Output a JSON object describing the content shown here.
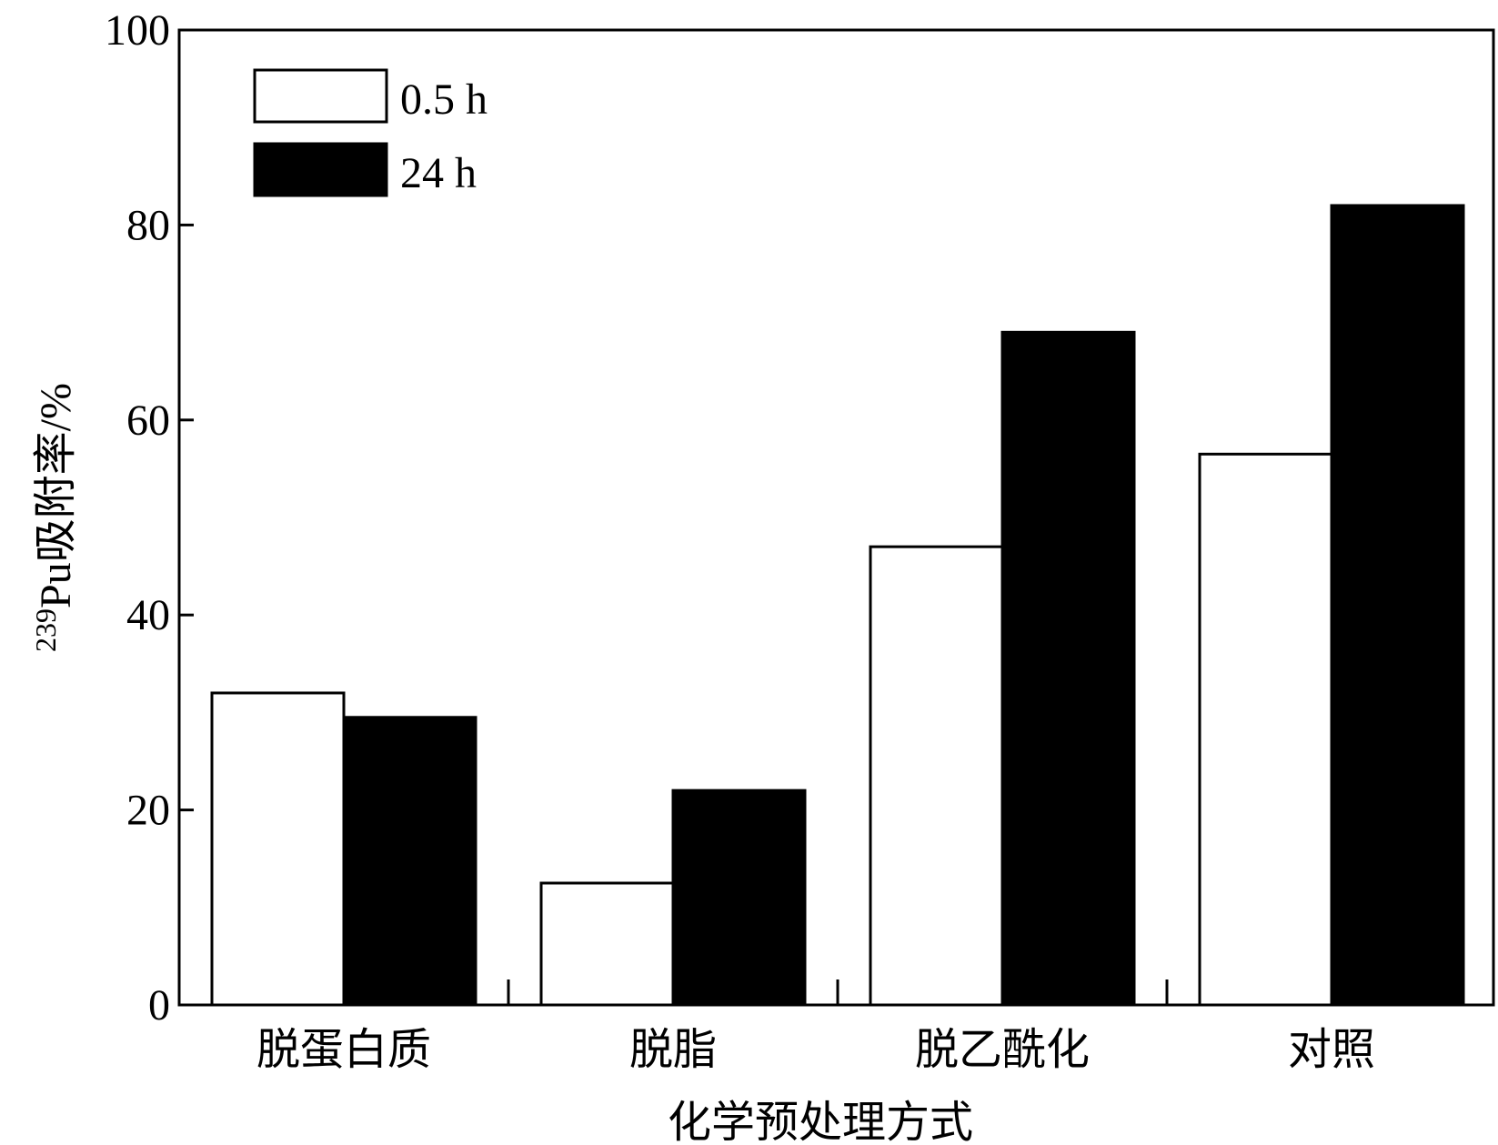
{
  "chart_data": {
    "type": "bar",
    "categories": [
      "脱蛋白质",
      "脱脂",
      "脱乙酰化",
      "对照"
    ],
    "series": [
      {
        "name": "0.5 h",
        "color": "#ffffff",
        "values": [
          32,
          12.5,
          47,
          56.5
        ]
      },
      {
        "name": "24 h",
        "color": "#000000",
        "values": [
          29.5,
          22,
          69,
          82
        ]
      }
    ],
    "xlabel": "化学预处理方式",
    "ylabel": {
      "sup": "239",
      "main": "Pu吸附率/%"
    },
    "ylim": [
      0,
      100
    ],
    "yticks": [
      "0",
      "20",
      "40",
      "60",
      "80",
      "100"
    ],
    "grid": false,
    "legend": "top-left"
  }
}
